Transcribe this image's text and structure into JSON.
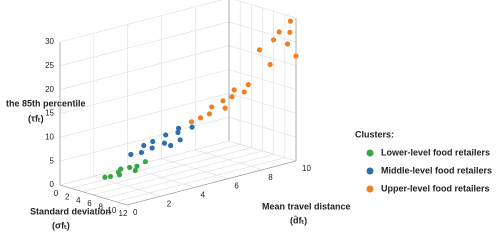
{
  "chart_data": {
    "type": "scatter3d",
    "x_label": "Standard deviation",
    "x_symbol": "(σfₜ)",
    "y_label": "Mean travel distance",
    "y_symbol": "(d̄fₜ)",
    "z_label": "the 85th percentile",
    "z_symbol": "(τfₜ)",
    "xlim": [
      0,
      12
    ],
    "xticks": [
      0,
      2,
      4,
      6,
      8,
      10,
      12
    ],
    "ylim": [
      0,
      10
    ],
    "yticks": [
      0,
      2,
      4,
      6,
      8,
      10
    ],
    "zlim": [
      0,
      30
    ],
    "zticks": [
      0,
      5,
      10,
      15,
      20,
      25,
      30
    ],
    "grid": true,
    "legend_title": "Clusters:",
    "series": [
      {
        "name": "Lower-level food retailers",
        "color": "#3aa546",
        "x": [
          2,
          3,
          4,
          3,
          4,
          5,
          5,
          3.5,
          5
        ],
        "y": [
          2,
          2,
          2.2,
          2.6,
          2.8,
          2.9,
          3.4,
          2.3,
          2.8
        ],
        "values": [
          0.5,
          1,
          1.5,
          2,
          2.5,
          3,
          3.5,
          1.8,
          2.2
        ]
      },
      {
        "name": "Middle-level food retailers",
        "color": "#2e6fad",
        "x": [
          3,
          4,
          5,
          4.5,
          6,
          5,
          6,
          7,
          5.5,
          7,
          3.5,
          6.5
        ],
        "y": [
          3.2,
          3.5,
          3.8,
          4,
          4.2,
          4.6,
          5,
          4.8,
          5.2,
          5.5,
          3.8,
          4.4
        ],
        "values": [
          4.5,
          5,
          6,
          7,
          7,
          8,
          8.5,
          7.5,
          9,
          9.5,
          6,
          6.5
        ]
      },
      {
        "name": "Upper-level food retailers",
        "color": "#f07f22",
        "x": [
          6,
          7,
          8,
          7.5,
          8,
          9,
          8.5,
          9,
          10,
          9.5,
          10,
          11,
          10.5,
          11,
          12,
          11.5,
          12,
          11
        ],
        "y": [
          5.8,
          6,
          6.2,
          6.5,
          7,
          7.2,
          7.5,
          6.8,
          7.6,
          8,
          8.5,
          9,
          9.5,
          10,
          9.5,
          9.8,
          10,
          8.8
        ],
        "values": [
          10,
          11,
          12,
          13,
          14,
          15,
          16,
          13,
          16,
          17,
          24,
          26,
          27,
          29,
          25,
          27,
          22,
          21
        ]
      }
    ]
  }
}
